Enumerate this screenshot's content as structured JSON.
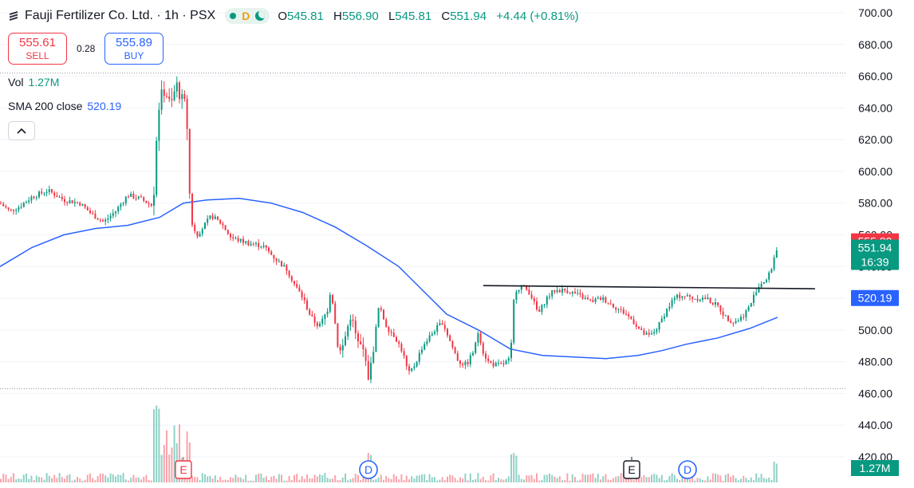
{
  "header": {
    "title": "Fauji Fertilizer Co. Ltd. · 1h · PSX",
    "market_status_icons": [
      "market-open-icon",
      "delayed-data-icon",
      "session-icon"
    ],
    "delayed_badge": "D",
    "ohlc": [
      {
        "key": "O",
        "value": "545.81"
      },
      {
        "key": "H",
        "value": "556.90"
      },
      {
        "key": "L",
        "value": "545.81"
      },
      {
        "key": "C",
        "value": "551.94"
      },
      {
        "key": "",
        "value": "+4.44 (+0.81%)"
      }
    ]
  },
  "trade": {
    "sell_price": "555.61",
    "sell_label": "SELL",
    "spread": "0.28",
    "buy_price": "555.89",
    "buy_label": "BUY"
  },
  "indicators": {
    "vol_label": "Vol",
    "vol_value": "1.27M",
    "sma_label": "SMA 200 close",
    "sma_value": "520.19"
  },
  "colors": {
    "up": "#089981",
    "down": "#f23645",
    "sma": "#2962ff",
    "trendline": "#131722",
    "grid": "#f0f3fa"
  },
  "chart_data": {
    "type": "candlestick",
    "symbol": "Fauji Fertilizer Co. Ltd.",
    "interval": "1h",
    "exchange": "PSX",
    "y_ticks": [
      "700.00",
      "680.00",
      "660.00",
      "640.00",
      "620.00",
      "600.00",
      "580.00",
      "560.00",
      "540.00",
      "520.00",
      "500.00",
      "480.00",
      "460.00",
      "440.00",
      "420.00"
    ],
    "ylim": [
      418,
      703
    ],
    "grid": true,
    "price_line_dotted": [
      662,
      463
    ],
    "price_tags": [
      {
        "name": "ask",
        "value": "555.89",
        "color": "#f23645"
      },
      {
        "name": "last",
        "value": "551.94",
        "extra": "16:39",
        "color": "#089981"
      },
      {
        "name": "sma200",
        "value": "520.19",
        "color": "#2962ff"
      },
      {
        "name": "volume",
        "value": "1.27M",
        "color": "#089981"
      }
    ],
    "price_anchors": [
      [
        0,
        580
      ],
      [
        12,
        575
      ],
      [
        25,
        578
      ],
      [
        40,
        584
      ],
      [
        60,
        588
      ],
      [
        80,
        582
      ],
      [
        100,
        580
      ],
      [
        115,
        573
      ],
      [
        130,
        568
      ],
      [
        145,
        575
      ],
      [
        160,
        585
      ],
      [
        175,
        583
      ],
      [
        192,
        578
      ],
      [
        196,
        620
      ],
      [
        200,
        645
      ],
      [
        207,
        652
      ],
      [
        214,
        640
      ],
      [
        221,
        655
      ],
      [
        228,
        645
      ],
      [
        234,
        640
      ],
      [
        236,
        600
      ],
      [
        240,
        568
      ],
      [
        247,
        560
      ],
      [
        255,
        565
      ],
      [
        265,
        572
      ],
      [
        278,
        567
      ],
      [
        290,
        558
      ],
      [
        310,
        555
      ],
      [
        330,
        553
      ],
      [
        345,
        545
      ],
      [
        360,
        538
      ],
      [
        370,
        528
      ],
      [
        380,
        520
      ],
      [
        390,
        508
      ],
      [
        400,
        502
      ],
      [
        410,
        512
      ],
      [
        415,
        528
      ],
      [
        420,
        505
      ],
      [
        425,
        485
      ],
      [
        430,
        490
      ],
      [
        435,
        500
      ],
      [
        440,
        510
      ],
      [
        448,
        492
      ],
      [
        455,
        488
      ],
      [
        462,
        470
      ],
      [
        466,
        480
      ],
      [
        475,
        515
      ],
      [
        485,
        502
      ],
      [
        495,
        496
      ],
      [
        505,
        486
      ],
      [
        512,
        472
      ],
      [
        520,
        478
      ],
      [
        530,
        490
      ],
      [
        545,
        500
      ],
      [
        555,
        505
      ],
      [
        565,
        492
      ],
      [
        575,
        480
      ],
      [
        585,
        478
      ],
      [
        595,
        488
      ],
      [
        600,
        500
      ],
      [
        605,
        487
      ],
      [
        612,
        480
      ],
      [
        620,
        478
      ],
      [
        630,
        478
      ],
      [
        640,
        482
      ],
      [
        645,
        525
      ],
      [
        655,
        528
      ],
      [
        665,
        523
      ],
      [
        675,
        510
      ],
      [
        685,
        520
      ],
      [
        695,
        525
      ],
      [
        710,
        525
      ],
      [
        725,
        522
      ],
      [
        740,
        518
      ],
      [
        755,
        520
      ],
      [
        770,
        515
      ],
      [
        785,
        510
      ],
      [
        795,
        505
      ],
      [
        805,
        498
      ],
      [
        815,
        496
      ],
      [
        825,
        502
      ],
      [
        835,
        512
      ],
      [
        845,
        520
      ],
      [
        855,
        522
      ],
      [
        870,
        520
      ],
      [
        885,
        520
      ],
      [
        900,
        515
      ],
      [
        910,
        508
      ],
      [
        920,
        505
      ],
      [
        930,
        508
      ],
      [
        940,
        515
      ],
      [
        948,
        525
      ],
      [
        955,
        530
      ],
      [
        962,
        532
      ],
      [
        968,
        540
      ],
      [
        973,
        551
      ]
    ],
    "sma200": [
      [
        0,
        540
      ],
      [
        40,
        552
      ],
      [
        80,
        560
      ],
      [
        120,
        564
      ],
      [
        160,
        566
      ],
      [
        200,
        571
      ],
      [
        230,
        580
      ],
      [
        260,
        582
      ],
      [
        300,
        583
      ],
      [
        340,
        580
      ],
      [
        380,
        574
      ],
      [
        420,
        565
      ],
      [
        460,
        553
      ],
      [
        500,
        540
      ],
      [
        530,
        525
      ],
      [
        560,
        510
      ],
      [
        600,
        500
      ],
      [
        640,
        488
      ],
      [
        680,
        484
      ],
      [
        720,
        483
      ],
      [
        760,
        482
      ],
      [
        800,
        484
      ],
      [
        830,
        487
      ],
      [
        860,
        491
      ],
      [
        900,
        495
      ],
      [
        940,
        501
      ],
      [
        975,
        508
      ]
    ],
    "trendline": {
      "from": [
        606,
        528
      ],
      "to": [
        1022,
        526
      ]
    },
    "events": [
      {
        "type": "earnings",
        "label": "E",
        "at": 230,
        "style": "red"
      },
      {
        "type": "dividend",
        "label": "D",
        "at": 462,
        "style": "blue"
      },
      {
        "type": "earnings",
        "label": "E",
        "at": 792,
        "style": "gray"
      },
      {
        "type": "dividend",
        "label": "D",
        "at": 862,
        "style": "blue"
      }
    ]
  }
}
